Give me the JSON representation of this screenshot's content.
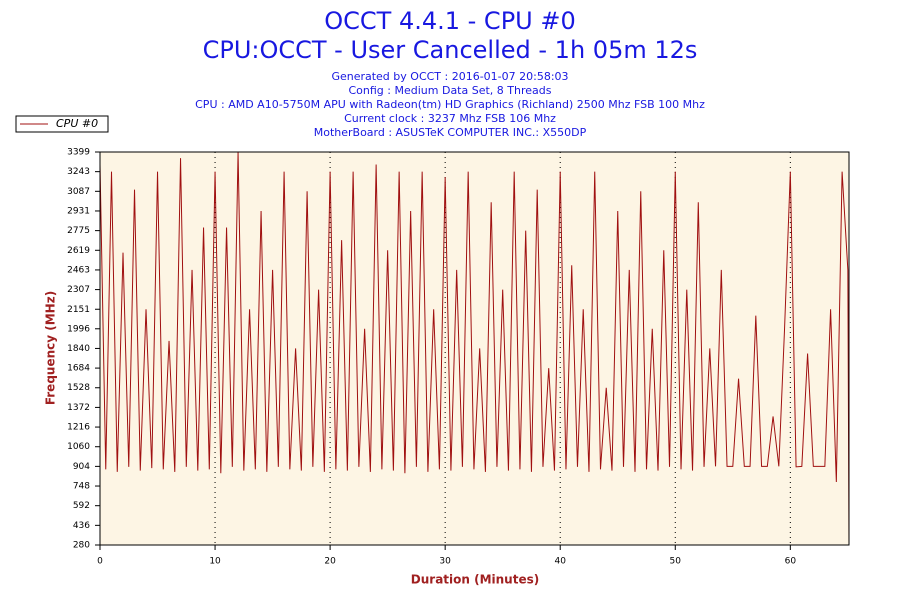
{
  "chart_data": {
    "type": "line",
    "title": "OCCT 4.4.1 - CPU #0",
    "subtitle": "CPU:OCCT - User Cancelled - 1h 05m 12s",
    "info": [
      "Generated by OCCT : 2016-01-07 20:58:03",
      "Config : Medium Data Set, 8 Threads",
      "CPU : AMD A10-5750M APU with Radeon(tm) HD Graphics (Richland) 2500 Mhz FSB 100 Mhz",
      "Current clock : 3237 Mhz FSB 106 Mhz",
      "MotherBoard : ASUSTeK COMPUTER INC.: X550DP"
    ],
    "xlabel": "Duration (Minutes)",
    "ylabel": "Frequency (MHz)",
    "xlim": [
      0,
      65.1
    ],
    "ylim": [
      280,
      3399
    ],
    "xticks": [
      0,
      10,
      20,
      30,
      40,
      50,
      60
    ],
    "yticks": [
      280,
      436,
      592,
      748,
      904,
      1060,
      1216,
      1372,
      1528,
      1684,
      1840,
      1996,
      2151,
      2307,
      2463,
      2619,
      2775,
      2931,
      3087,
      3243,
      3399
    ],
    "grid": "x",
    "legend": "top-left",
    "x": [
      0,
      0.5,
      1,
      1.5,
      2,
      2.5,
      3,
      3.5,
      4,
      4.5,
      5,
      5.5,
      6,
      6.5,
      7,
      7.5,
      8,
      8.5,
      9,
      9.5,
      10,
      10.5,
      11,
      11.5,
      12,
      12.5,
      13,
      13.5,
      14,
      14.5,
      15,
      15.5,
      16,
      16.5,
      17,
      17.5,
      18,
      18.5,
      19,
      19.5,
      20,
      20.5,
      21,
      21.5,
      22,
      22.5,
      23,
      23.5,
      24,
      24.5,
      25,
      25.5,
      26,
      26.5,
      27,
      27.5,
      28,
      28.5,
      29,
      29.5,
      30,
      30.5,
      31,
      31.5,
      32,
      32.5,
      33,
      33.5,
      34,
      34.5,
      35,
      35.5,
      36,
      36.5,
      37,
      37.5,
      38,
      38.5,
      39,
      39.5,
      40,
      40.5,
      41,
      41.5,
      42,
      42.5,
      43,
      43.5,
      44,
      44.5,
      45,
      45.5,
      46,
      46.5,
      47,
      47.5,
      48,
      48.5,
      49,
      49.5,
      50,
      50.5,
      51,
      51.5,
      52,
      52.5,
      53,
      53.5,
      54,
      54.5,
      55,
      55.5,
      56,
      56.5,
      57,
      57.5,
      58,
      58.5,
      59,
      59.5,
      60,
      60.5,
      61,
      61.5,
      62,
      62.5,
      63,
      63.5,
      64,
      64.5,
      65,
      65.1
    ],
    "series": [
      {
        "name": "CPU #0",
        "color": "#a01010",
        "values": [
          3300,
          880,
          3243,
          860,
          2600,
          900,
          3100,
          870,
          2151,
          890,
          3243,
          880,
          1900,
          860,
          3350,
          900,
          2463,
          870,
          2800,
          880,
          3243,
          850,
          2800,
          900,
          3400,
          870,
          2151,
          880,
          2931,
          860,
          2463,
          900,
          3243,
          880,
          1840,
          870,
          3087,
          900,
          2307,
          860,
          3243,
          880,
          2700,
          870,
          3243,
          900,
          1996,
          860,
          3300,
          880,
          2619,
          870,
          3243,
          850,
          2931,
          900,
          3243,
          860,
          2151,
          880,
          3200,
          870,
          2463,
          900,
          3243,
          880,
          1840,
          860,
          3000,
          900,
          2307,
          870,
          3243,
          880,
          2775,
          860,
          3100,
          900,
          1684,
          870,
          3243,
          880,
          2500,
          900,
          2151,
          860,
          3243,
          880,
          1528,
          870,
          2931,
          900,
          2463,
          860,
          3087,
          880,
          1996,
          870,
          2619,
          900,
          3243,
          880,
          2307,
          870,
          3000,
          900,
          1840,
          904,
          2463,
          904,
          904,
          1600,
          904,
          904,
          2100,
          904,
          904,
          1300,
          904,
          2000,
          3243,
          900,
          904,
          1800,
          904,
          904,
          904,
          2151,
          780,
          3243,
          2463,
          280
        ]
      }
    ]
  }
}
